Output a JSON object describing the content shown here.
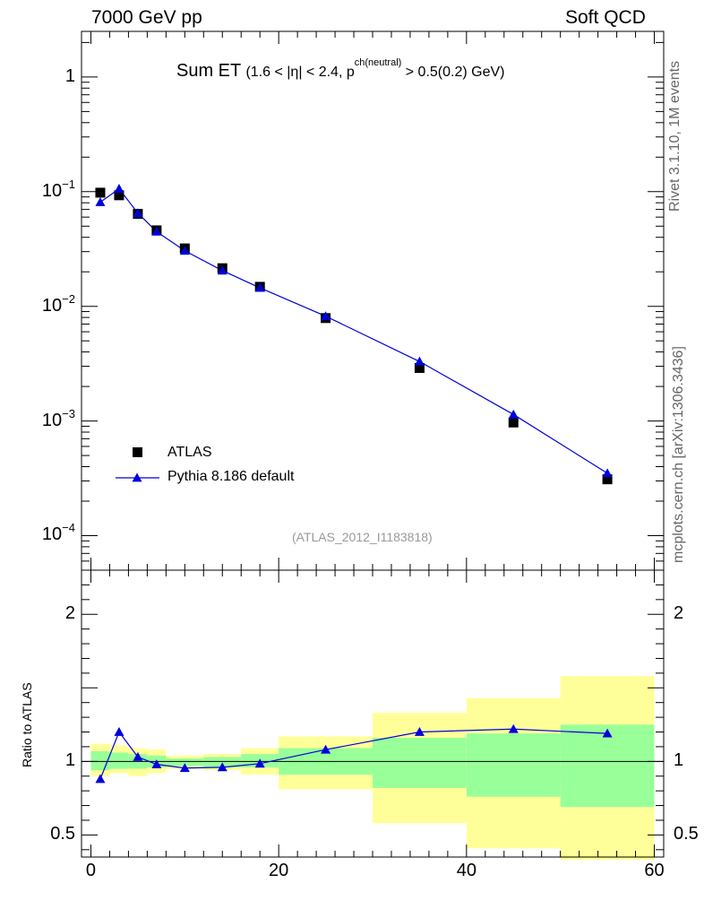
{
  "header": {
    "left": "7000 GeV pp",
    "right": "Soft QCD"
  },
  "side": {
    "rivet": "Rivet 3.1.10,  1M events",
    "mcplots": "mcplots.cern.ch [arXiv:1306.3436]"
  },
  "title": {
    "main": "Sum ET",
    "range_open": "(1.6 < |",
    "eta": "η",
    "range_mid": "| < 2.4, p",
    "sup": "ch(neutral)",
    "range_end": " > 0.5(0.2) GeV)"
  },
  "analysis_tag": "(ATLAS_2012_I1183818)",
  "ratio_ylabel": "Ratio to ATLAS",
  "legend": {
    "data_label": "ATLAS",
    "mc_label": "Pythia 8.186 default"
  },
  "colors": {
    "data": "#000000",
    "mc": "#0000dd",
    "band_outer": "#ffff99",
    "band_inner": "#99ff99"
  },
  "chart_data": {
    "type": "scatter",
    "x_ticks": [
      "0",
      "20",
      "40",
      "60"
    ],
    "xlim": [
      -1,
      61
    ],
    "top": {
      "yscale": "log",
      "ylim": [
        5e-05,
        2.5
      ],
      "y_ticks": [
        {
          "v": 1,
          "base": "1",
          "exp": ""
        },
        {
          "v": 0.1,
          "base": "10",
          "exp": "−1"
        },
        {
          "v": 0.01,
          "base": "10",
          "exp": "−2"
        },
        {
          "v": 0.001,
          "base": "10",
          "exp": "−3"
        },
        {
          "v": 0.0001,
          "base": "10",
          "exp": "−4"
        }
      ]
    },
    "ratio": {
      "ylim": [
        0.35,
        2.3
      ],
      "y_ticks": [
        "0.5",
        "1",
        "2"
      ]
    },
    "series": [
      {
        "name": "ATLAS",
        "marker": "square",
        "x": [
          1,
          3,
          5,
          7,
          10,
          14,
          18,
          25,
          35,
          45,
          55
        ],
        "y": [
          0.098,
          0.093,
          0.064,
          0.046,
          0.032,
          0.0215,
          0.0148,
          0.0079,
          0.0029,
          0.00097,
          0.00031
        ]
      },
      {
        "name": "Pythia 8.186 default",
        "marker": "triangle",
        "x": [
          1,
          3,
          5,
          7,
          10,
          14,
          18,
          25,
          35,
          45,
          55
        ],
        "y": [
          0.081,
          0.106,
          0.065,
          0.0448,
          0.0305,
          0.0205,
          0.0145,
          0.0082,
          0.0033,
          0.00114,
          0.00035
        ]
      }
    ],
    "ratio_series": {
      "x": [
        1,
        3,
        5,
        7,
        10,
        14,
        18,
        25,
        35,
        45,
        55
      ],
      "y": [
        0.88,
        1.2,
        1.03,
        0.98,
        0.955,
        0.96,
        0.985,
        1.08,
        1.2,
        1.22,
        1.19
      ]
    },
    "bins": [
      {
        "lo": 0,
        "hi": 2,
        "in_lo": 0.94,
        "in_hi": 1.07,
        "out_lo": 0.9,
        "out_hi": 1.12
      },
      {
        "lo": 2,
        "hi": 4,
        "in_lo": 0.95,
        "in_hi": 1.06,
        "out_lo": 0.92,
        "out_hi": 1.11
      },
      {
        "lo": 4,
        "hi": 6,
        "in_lo": 0.95,
        "in_hi": 1.05,
        "out_lo": 0.9,
        "out_hi": 1.09
      },
      {
        "lo": 6,
        "hi": 8,
        "in_lo": 0.96,
        "in_hi": 1.04,
        "out_lo": 0.92,
        "out_hi": 1.08
      },
      {
        "lo": 8,
        "hi": 12,
        "in_lo": 0.97,
        "in_hi": 1.02,
        "out_lo": 0.95,
        "out_hi": 1.04
      },
      {
        "lo": 12,
        "hi": 16,
        "in_lo": 0.96,
        "in_hi": 1.03,
        "out_lo": 0.94,
        "out_hi": 1.05
      },
      {
        "lo": 16,
        "hi": 20,
        "in_lo": 0.96,
        "in_hi": 1.05,
        "out_lo": 0.91,
        "out_hi": 1.09
      },
      {
        "lo": 20,
        "hi": 30,
        "in_lo": 0.91,
        "in_hi": 1.09,
        "out_lo": 0.81,
        "out_hi": 1.17
      },
      {
        "lo": 30,
        "hi": 40,
        "in_lo": 0.82,
        "in_hi": 1.16,
        "out_lo": 0.58,
        "out_hi": 1.33
      },
      {
        "lo": 40,
        "hi": 50,
        "in_lo": 0.76,
        "in_hi": 1.19,
        "out_lo": 0.41,
        "out_hi": 1.43
      },
      {
        "lo": 50,
        "hi": 60,
        "in_lo": 0.69,
        "in_hi": 1.25,
        "out_lo": 0.33,
        "out_hi": 1.58
      }
    ]
  }
}
